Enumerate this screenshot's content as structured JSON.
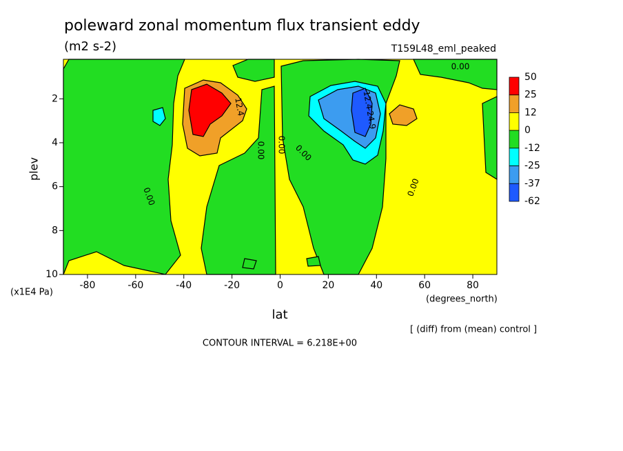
{
  "chart_data": {
    "type": "contour",
    "title": "poleward zonal momentum flux transient eddy",
    "subtitle": "(m2 s-2)",
    "run_label": "T159L48_eml_peaked",
    "x_label": "lat",
    "x_unit": "(degrees_north)",
    "y_label": "plev",
    "y_unit": "(x1E4 Pa)",
    "note": "[ (diff) from (mean) control ]",
    "contour_interval": "CONTOUR INTERVAL = 6.218E+00",
    "xlim": [
      -90,
      90
    ],
    "xticks": [
      -80,
      -60,
      -40,
      -20,
      0,
      20,
      40,
      60,
      80
    ],
    "ylim": [
      0.2,
      10
    ],
    "yticks": [
      2,
      4,
      6,
      8,
      10
    ],
    "y_inverted": true,
    "levels": [
      50,
      25,
      12,
      0,
      -12,
      -25,
      -37,
      -62
    ],
    "colors": [
      "#ff0000",
      "#f0a028",
      "#ffff00",
      "#22dd22",
      "#00ffff",
      "#3c9cf0",
      "#1e5aff"
    ],
    "contour_labels": [
      "0.00",
      "0.00",
      "0.00",
      "0.00",
      "0.00",
      "0.00",
      "12.4",
      "-12.4",
      "-24.9"
    ]
  }
}
